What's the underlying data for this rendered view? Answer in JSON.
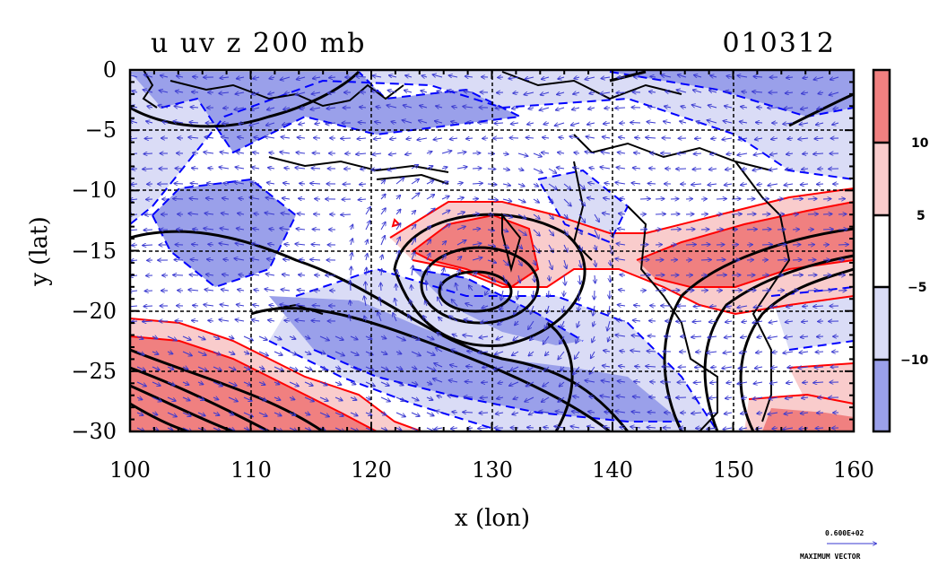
{
  "chart_data": {
    "type": "heatmap",
    "title_left": "u uv z 200 mb",
    "title_right": "010312",
    "xlabel": "x (lon)",
    "ylabel": "y (lat)",
    "xlim": [
      100,
      160
    ],
    "ylim": [
      -30,
      0
    ],
    "x_ticks": [
      100,
      110,
      120,
      130,
      140,
      150,
      160
    ],
    "x_tick_labels": [
      "100",
      "110",
      "120",
      "130",
      "140",
      "150",
      "160"
    ],
    "y_ticks": [
      0,
      -5,
      -10,
      -15,
      -20,
      -25,
      -30
    ],
    "y_tick_labels": [
      "0",
      "−5",
      "−10",
      "−15",
      "−20",
      "−25",
      "−30"
    ],
    "gridlines": true,
    "colorbar": {
      "levels": [
        {
          "range": "> 10",
          "color": "#f08080"
        },
        {
          "range": "5 to 10",
          "color": "#f9cccc"
        },
        {
          "range": "-5 to 5",
          "color": "#ffffff"
        },
        {
          "range": "-10 to -5",
          "color": "#dadcf6"
        },
        {
          "range": "< -10",
          "color": "#9aa0ea"
        }
      ],
      "labels": [
        "10",
        "5",
        "−5",
        "−10"
      ]
    },
    "vector_key": {
      "value": "0.600E+02",
      "label": "MAXIMUM VECTOR"
    },
    "contour_colors": {
      "positive_u": "#ff0000",
      "negative_u": "#0000ff",
      "geopotential": "#000000",
      "coast": "#000000"
    }
  }
}
